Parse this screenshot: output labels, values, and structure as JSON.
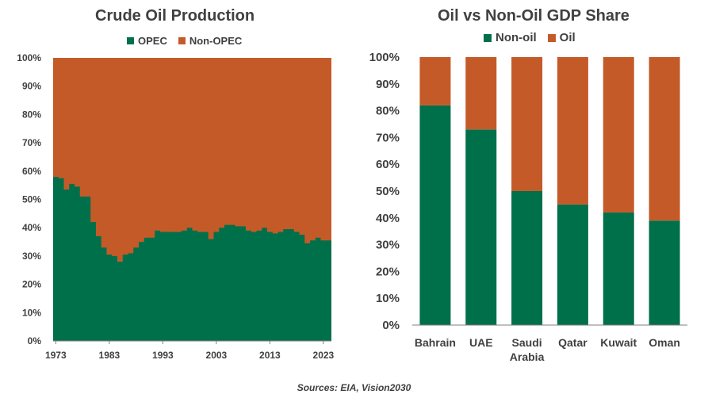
{
  "colors": {
    "green": "#00704A",
    "orange": "#C55A29",
    "axis": "#404040"
  },
  "source": "Sources: EIA, Vision2030",
  "chart_data": [
    {
      "type": "area",
      "title": "Crude Oil Production",
      "legend": [
        "OPEC",
        "Non-OPEC"
      ],
      "legend_placement": "top",
      "grid": false,
      "ylim": [
        0,
        100
      ],
      "y_ticks": [
        "0%",
        "10%",
        "20%",
        "30%",
        "40%",
        "50%",
        "60%",
        "70%",
        "80%",
        "90%",
        "100%"
      ],
      "x_ticks": [
        "1973",
        "1983",
        "1993",
        "2003",
        "2013",
        "2023"
      ],
      "x": [
        1973,
        1974,
        1975,
        1976,
        1977,
        1978,
        1979,
        1980,
        1981,
        1982,
        1983,
        1984,
        1985,
        1986,
        1987,
        1988,
        1989,
        1990,
        1991,
        1992,
        1993,
        1994,
        1995,
        1996,
        1997,
        1998,
        1999,
        2000,
        2001,
        2002,
        2003,
        2004,
        2005,
        2006,
        2007,
        2008,
        2009,
        2010,
        2011,
        2012,
        2013,
        2014,
        2015,
        2016,
        2017,
        2018,
        2019,
        2020,
        2021,
        2022,
        2023,
        2024
      ],
      "series": [
        {
          "name": "OPEC",
          "values": [
            58,
            57.5,
            53.5,
            55.5,
            54.5,
            51,
            51,
            42,
            37,
            33,
            30.5,
            30,
            28,
            30.5,
            31,
            33,
            35,
            36.5,
            36.5,
            39,
            38.5,
            38.5,
            38.5,
            38.5,
            39,
            40,
            39,
            38.5,
            38.5,
            36,
            38.5,
            40,
            41,
            41,
            40.5,
            40.5,
            39,
            38.5,
            39,
            40,
            38.5,
            38,
            38.5,
            39.5,
            39.5,
            38.5,
            37.5,
            34.5,
            35.5,
            36.5,
            35.5,
            35.5
          ]
        },
        {
          "name": "Non-OPEC",
          "values": [
            42,
            42.5,
            46.5,
            44.5,
            45.5,
            49,
            49,
            58,
            63,
            67,
            69.5,
            70,
            72,
            69.5,
            69,
            67,
            65,
            63.5,
            63.5,
            61,
            61.5,
            61.5,
            61.5,
            61.5,
            61,
            60,
            61,
            61.5,
            61.5,
            64,
            61.5,
            60,
            59,
            59,
            59.5,
            59.5,
            61,
            61.5,
            61,
            60,
            61.5,
            62,
            61.5,
            60.5,
            60.5,
            61.5,
            62.5,
            65.5,
            64.5,
            63.5,
            64.5,
            64.5
          ]
        }
      ]
    },
    {
      "type": "bar",
      "title": "Oil vs Non-Oil GDP Share",
      "legend": [
        "Non-oil",
        "Oil"
      ],
      "legend_placement": "top",
      "grid": false,
      "stacked": true,
      "ylim": [
        0,
        100
      ],
      "y_ticks": [
        "0%",
        "10%",
        "20%",
        "30%",
        "40%",
        "50%",
        "60%",
        "70%",
        "80%",
        "90%",
        "100%"
      ],
      "categories": [
        [
          "Bahrain"
        ],
        [
          "UAE"
        ],
        [
          "Saudi",
          "Arabia"
        ],
        [
          "Qatar"
        ],
        [
          "Kuwait"
        ],
        [
          "Oman"
        ]
      ],
      "series": [
        {
          "name": "Non-oil",
          "values": [
            82,
            73,
            50,
            45,
            42,
            39
          ]
        },
        {
          "name": "Oil",
          "values": [
            18,
            27,
            50,
            55,
            58,
            61
          ]
        }
      ]
    }
  ]
}
